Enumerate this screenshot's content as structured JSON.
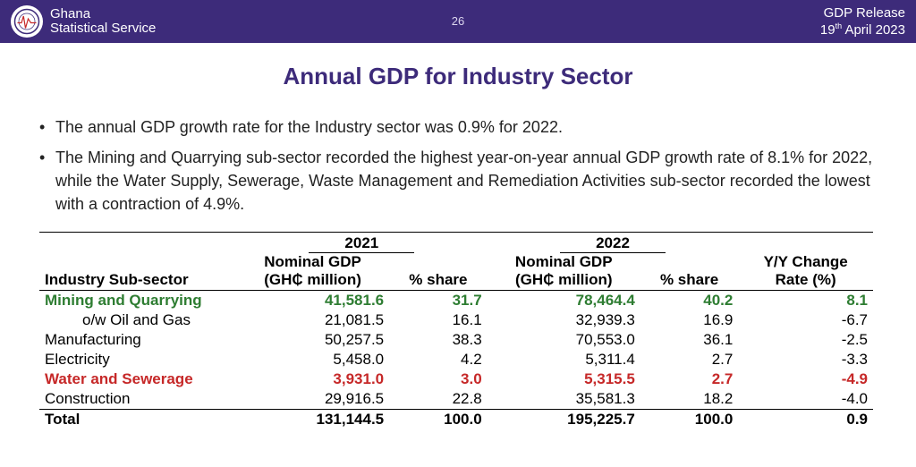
{
  "header": {
    "org_line1": "Ghana",
    "org_line2": "Statistical Service",
    "slide_number": "26",
    "release_label": "GDP Release",
    "release_date_html": "19<sup>th</sup> April 2023",
    "bg_color": "#3d2b7a"
  },
  "title": "Annual GDP for Industry Sector",
  "title_color": "#3d2b7a",
  "bullets": [
    "The annual GDP growth rate for the Industry sector was 0.9% for 2022.",
    "The Mining and  Quarrying sub-sector recorded the highest year-on-year annual GDP growth rate of 8.1% for 2022, while the Water Supply, Sewerage, Waste Management and Remediation Activities sub-sector recorded the lowest with a contraction of 4.9%."
  ],
  "table": {
    "year_left": "2021",
    "year_right": "2022",
    "col0": "Industry Sub-sector",
    "col1a": "Nominal GDP",
    "col1b": "(GH₵ million)",
    "col2": "% share",
    "col3a": "Nominal GDP",
    "col3b": "(GH₵ million)",
    "col4": "% share",
    "col5a": "Y/Y Change",
    "col5b": "Rate (%)",
    "rows": [
      {
        "label": "Mining and Quarrying",
        "indent": false,
        "style": "green",
        "v": [
          "41,581.6",
          "31.7",
          "78,464.4",
          "40.2",
          "8.1"
        ]
      },
      {
        "label": "o/w Oil and Gas",
        "indent": true,
        "style": "normal",
        "v": [
          "21,081.5",
          "16.1",
          "32,939.3",
          "16.9",
          "-6.7"
        ]
      },
      {
        "label": "Manufacturing",
        "indent": false,
        "style": "normal",
        "v": [
          "50,257.5",
          "38.3",
          "70,553.0",
          "36.1",
          "-2.5"
        ]
      },
      {
        "label": "Electricity",
        "indent": false,
        "style": "normal",
        "v": [
          "5,458.0",
          "4.2",
          "5,311.4",
          "2.7",
          "-3.3"
        ]
      },
      {
        "label": "Water and  Sewerage",
        "indent": false,
        "style": "red",
        "v": [
          "3,931.0",
          "3.0",
          "5,315.5",
          "2.7",
          "-4.9"
        ]
      },
      {
        "label": "Construction",
        "indent": false,
        "style": "normal",
        "v": [
          "29,916.5",
          "22.8",
          "35,581.3",
          "18.2",
          "-4.0"
        ]
      }
    ],
    "total": {
      "label": "Total",
      "v": [
        "131,144.5",
        "100.0",
        "195,225.7",
        "100.0",
        "0.9"
      ]
    },
    "highlight_green": "#2e7d32",
    "highlight_red": "#c62828",
    "border_color": "#000000"
  }
}
